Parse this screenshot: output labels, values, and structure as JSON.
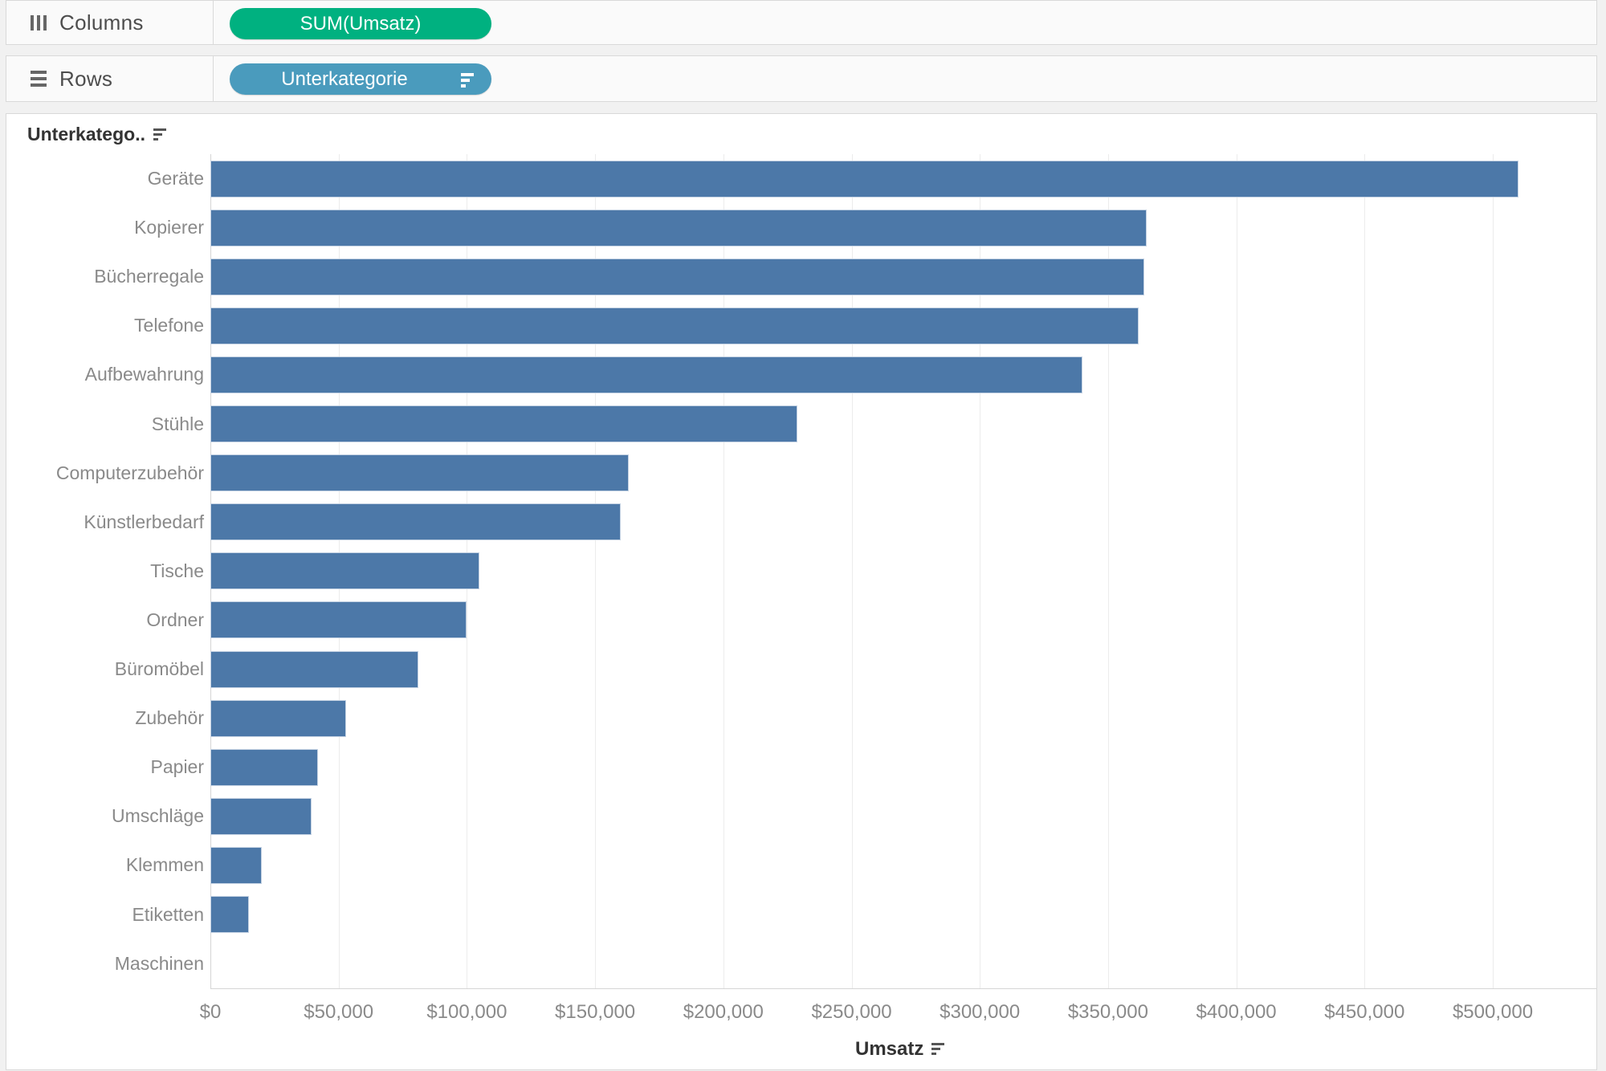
{
  "shelves": {
    "columns": {
      "label": "Columns",
      "pill": "SUM(Umsatz)"
    },
    "rows": {
      "label": "Rows",
      "pill": "Unterkategorie"
    }
  },
  "row_field_header": "Unterkatego..",
  "colors": {
    "measure_pill": "#00b180",
    "dimension_pill": "#4a9bbd",
    "bar": "#4c78a8",
    "bar_border": "#c3d1e2"
  },
  "chart_data": {
    "type": "bar",
    "orientation": "horizontal",
    "sort": "descending",
    "title": "",
    "xlabel": "Umsatz",
    "ylabel": "Unterkategorie",
    "xlim": [
      0,
      540000
    ],
    "grid": "vertical",
    "categories": [
      "Geräte",
      "Kopierer",
      "Bücherregale",
      "Telefone",
      "Aufbewahrung",
      "Stühle",
      "Computerzubehör",
      "Künstlerbedarf",
      "Tische",
      "Ordner",
      "Büromöbel",
      "Zubehör",
      "Papier",
      "Umschläge",
      "Klemmen",
      "Etiketten",
      "Maschinen"
    ],
    "values": [
      510000,
      365000,
      364000,
      362000,
      340000,
      229000,
      163000,
      160000,
      105000,
      100000,
      81000,
      53000,
      42000,
      39500,
      20000,
      15000,
      0
    ],
    "x_ticks": [
      "$0",
      "$50,000",
      "$100,000",
      "$150,000",
      "$200,000",
      "$250,000",
      "$300,000",
      "$350,000",
      "$400,000",
      "$450,000",
      "$500,000"
    ],
    "x_tick_step": 50000
  }
}
